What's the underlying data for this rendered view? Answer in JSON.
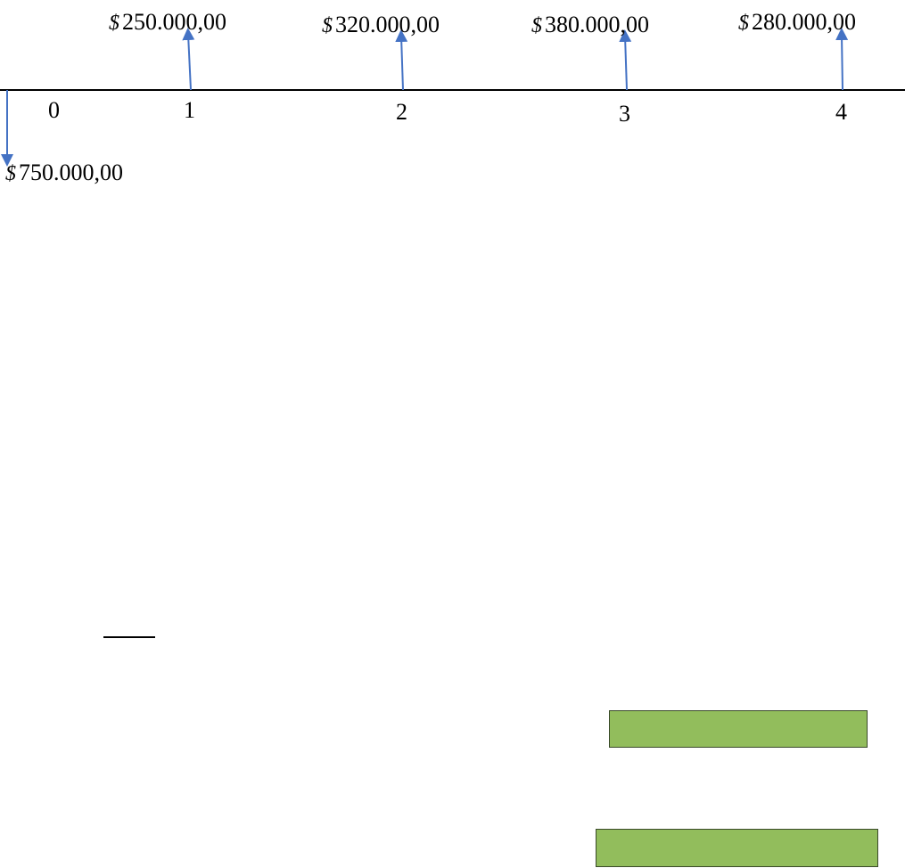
{
  "timeline": {
    "periods": [
      "0",
      "1",
      "2",
      "3",
      "4"
    ],
    "currency_symbol": "$",
    "outflow": {
      "period": "0",
      "amount": "750.000,00"
    },
    "inflows": [
      {
        "period": "1",
        "amount": "250.000,00"
      },
      {
        "period": "2",
        "amount": "320.000,00"
      },
      {
        "period": "3",
        "amount": "380.000,00"
      },
      {
        "period": "4",
        "amount": "280.000,00"
      }
    ],
    "colors": {
      "axis": "#000000",
      "arrow": "#4472c4",
      "box_fill": "#92bd5c",
      "box_border": "#3a4a2a"
    }
  }
}
